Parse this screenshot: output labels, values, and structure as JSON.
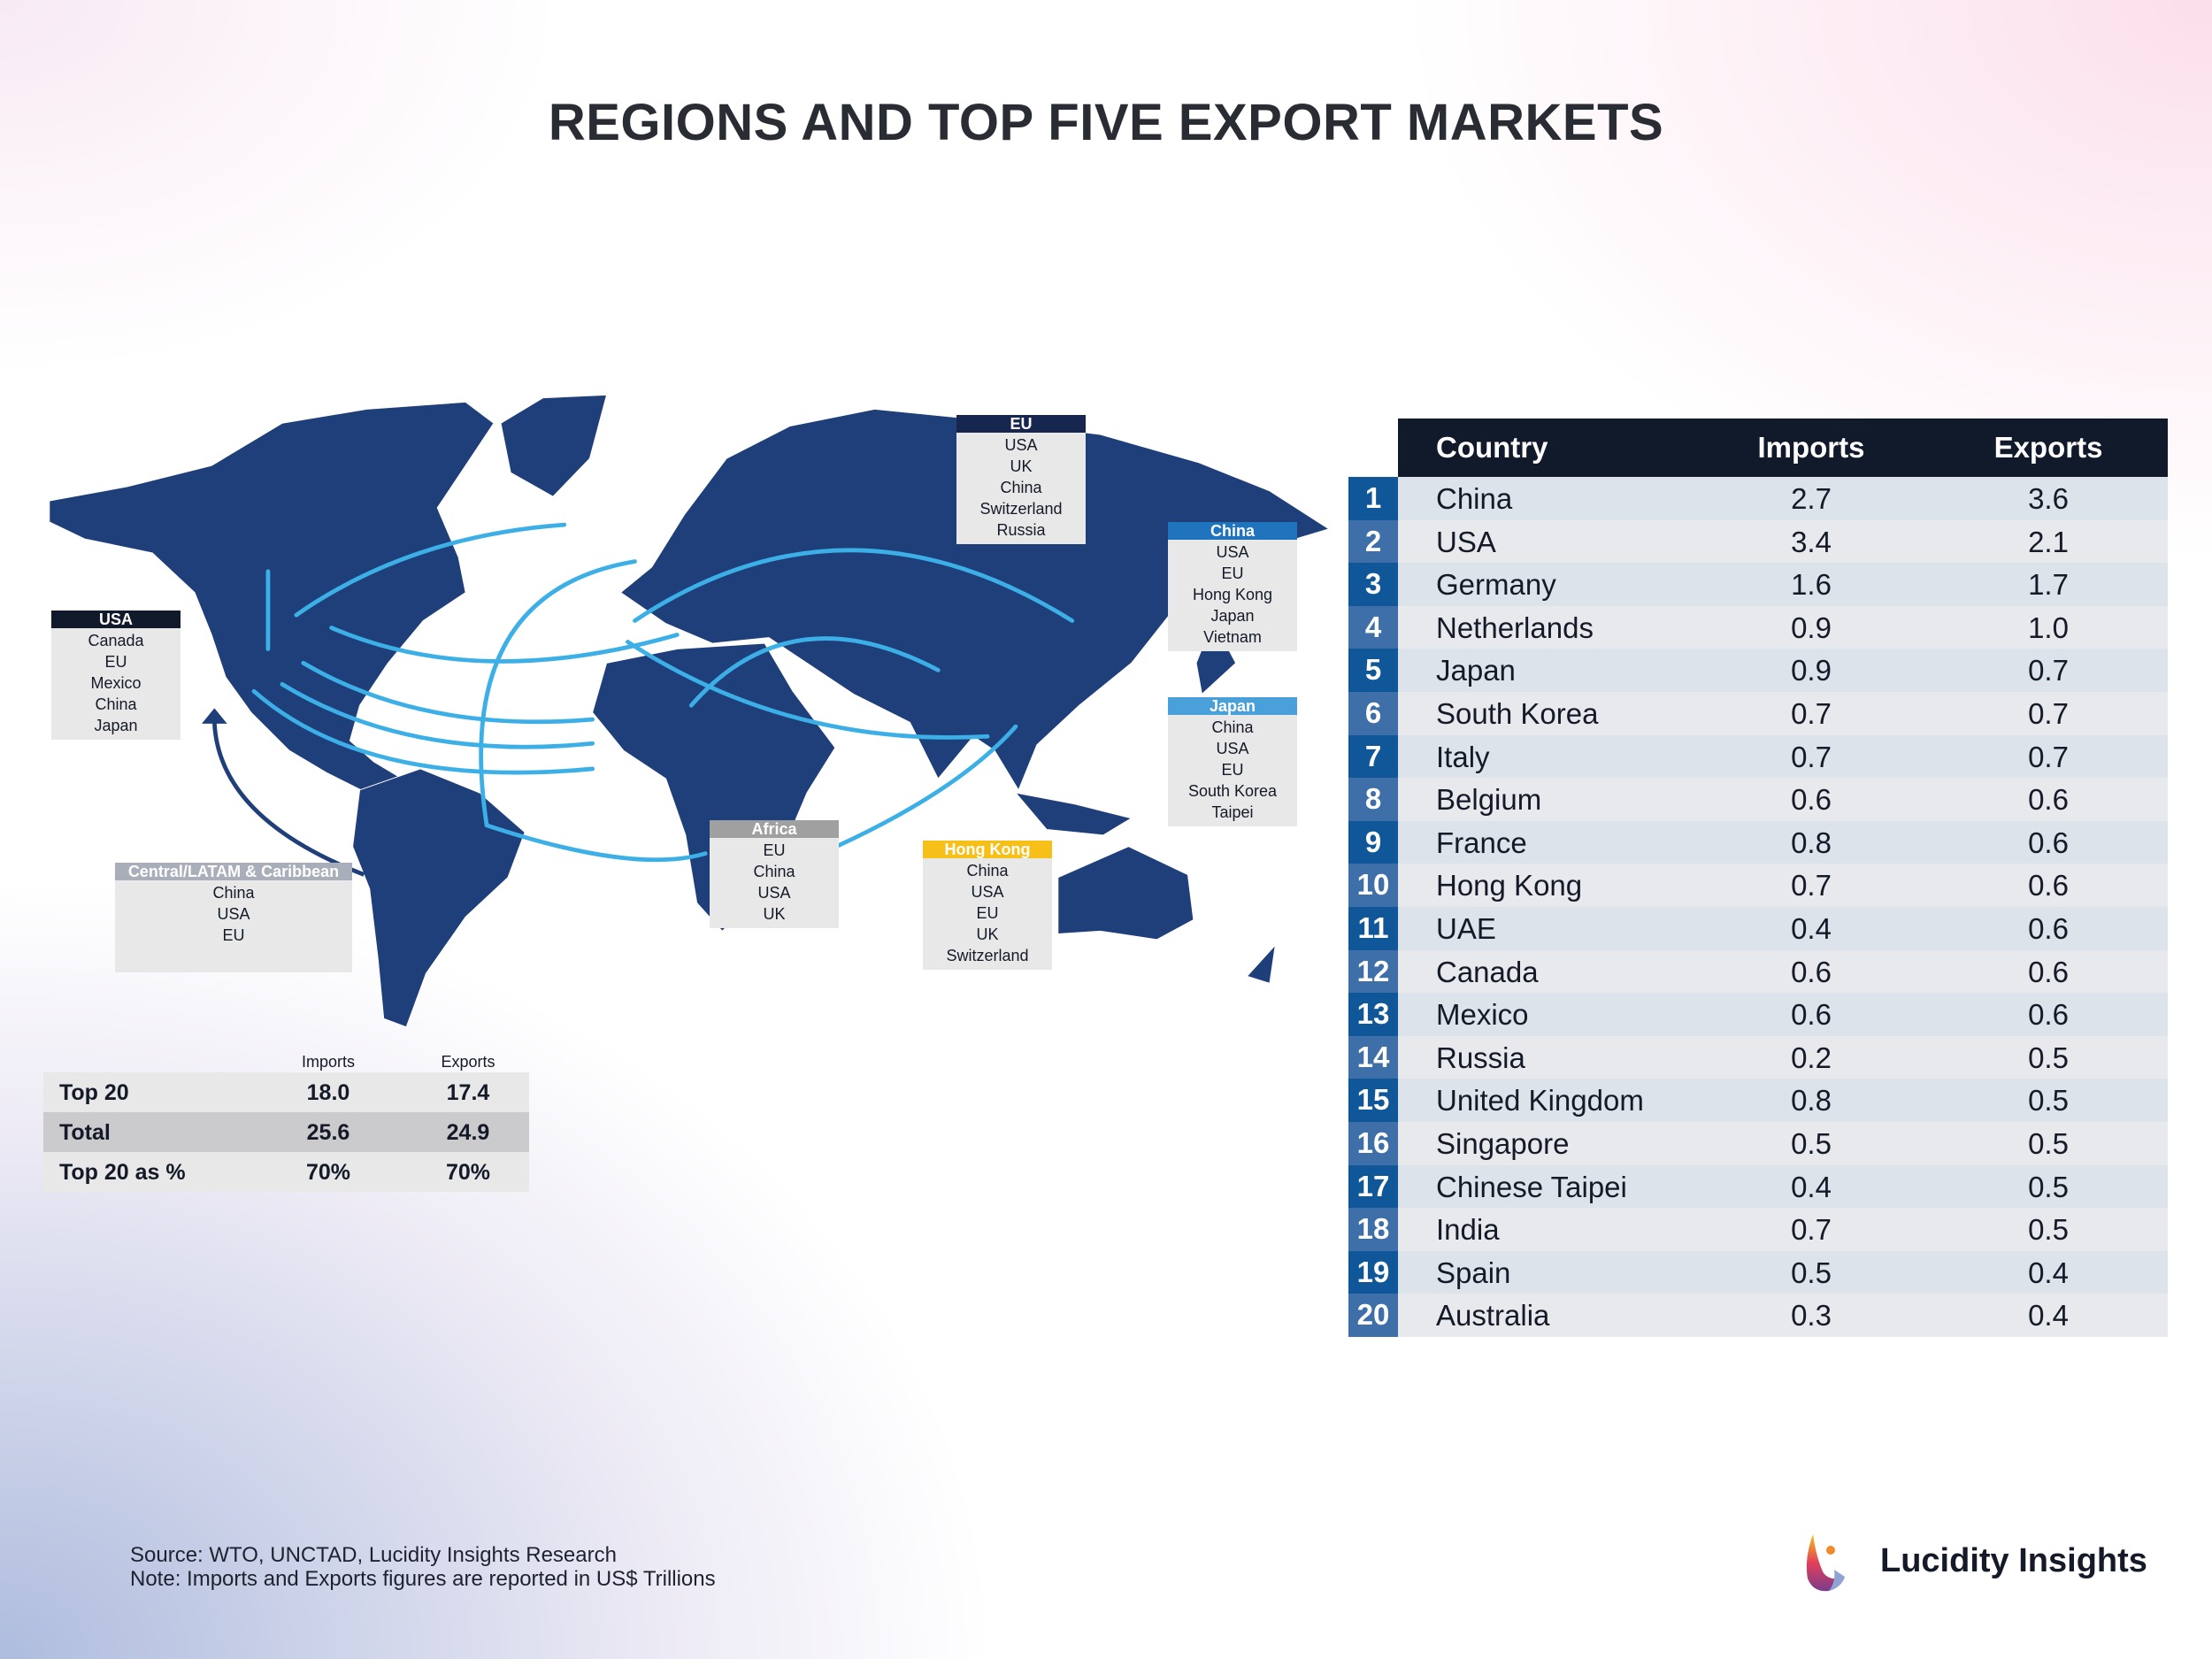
{
  "title": "REGIONS AND TOP FIVE EXPORT MARKETS",
  "colors": {
    "map": "#1f3f7a",
    "arc": "#3cb0e6",
    "navy": "#111a2b",
    "rank_dark": "#0f5798",
    "rank_light": "#3f6fa8"
  },
  "regions": [
    {
      "name": "USA",
      "header_color": "#111a2b",
      "markets": [
        "Canada",
        "EU",
        "Mexico",
        "China",
        "Japan"
      ]
    },
    {
      "name": "EU",
      "header_color": "#16264f",
      "markets": [
        "USA",
        "UK",
        "China",
        "Switzerland",
        "Russia"
      ]
    },
    {
      "name": "China",
      "header_color": "#1f74bd",
      "markets": [
        "USA",
        "EU",
        "Hong Kong",
        "Japan",
        "Vietnam"
      ]
    },
    {
      "name": "Japan",
      "header_color": "#4aa0d8",
      "markets": [
        "China",
        "USA",
        "EU",
        "South Korea",
        "Taipei"
      ]
    },
    {
      "name": "Africa",
      "header_color": "#a0a0a0",
      "markets": [
        "EU",
        "China",
        "USA",
        "UK"
      ]
    },
    {
      "name": "Hong Kong",
      "header_color": "#f6c018",
      "markets": [
        "China",
        "USA",
        "EU",
        "UK",
        "Switzerland"
      ]
    },
    {
      "name": "Central/LATAM & Caribbean",
      "header_color": "#a9afba",
      "markets": [
        "China",
        "USA",
        "EU"
      ]
    }
  ],
  "table": {
    "headers": {
      "country": "Country",
      "imports": "Imports",
      "exports": "Exports"
    },
    "rows": [
      {
        "rank": "1",
        "country": "China",
        "imports": "2.7",
        "exports": "3.6"
      },
      {
        "rank": "2",
        "country": "USA",
        "imports": "3.4",
        "exports": "2.1"
      },
      {
        "rank": "3",
        "country": "Germany",
        "imports": "1.6",
        "exports": "1.7"
      },
      {
        "rank": "4",
        "country": "Netherlands",
        "imports": "0.9",
        "exports": "1.0"
      },
      {
        "rank": "5",
        "country": "Japan",
        "imports": "0.9",
        "exports": "0.7"
      },
      {
        "rank": "6",
        "country": "South Korea",
        "imports": "0.7",
        "exports": "0.7"
      },
      {
        "rank": "7",
        "country": "Italy",
        "imports": "0.7",
        "exports": "0.7"
      },
      {
        "rank": "8",
        "country": "Belgium",
        "imports": "0.6",
        "exports": "0.6"
      },
      {
        "rank": "9",
        "country": "France",
        "imports": "0.8",
        "exports": "0.6"
      },
      {
        "rank": "10",
        "country": "Hong Kong",
        "imports": "0.7",
        "exports": "0.6"
      },
      {
        "rank": "11",
        "country": "UAE",
        "imports": "0.4",
        "exports": "0.6"
      },
      {
        "rank": "12",
        "country": "Canada",
        "imports": "0.6",
        "exports": "0.6"
      },
      {
        "rank": "13",
        "country": "Mexico",
        "imports": "0.6",
        "exports": "0.6"
      },
      {
        "rank": "14",
        "country": "Russia",
        "imports": "0.2",
        "exports": "0.5"
      },
      {
        "rank": "15",
        "country": "United Kingdom",
        "imports": "0.8",
        "exports": "0.5"
      },
      {
        "rank": "16",
        "country": "Singapore",
        "imports": "0.5",
        "exports": "0.5"
      },
      {
        "rank": "17",
        "country": "Chinese Taipei",
        "imports": "0.4",
        "exports": "0.5"
      },
      {
        "rank": "18",
        "country": "India",
        "imports": "0.7",
        "exports": "0.5"
      },
      {
        "rank": "19",
        "country": "Spain",
        "imports": "0.5",
        "exports": "0.4"
      },
      {
        "rank": "20",
        "country": "Australia",
        "imports": "0.3",
        "exports": "0.4"
      }
    ]
  },
  "summary": {
    "headers": {
      "imports": "Imports",
      "exports": "Exports"
    },
    "rows": [
      {
        "label": "Top 20",
        "imports": "18.0",
        "exports": "17.4"
      },
      {
        "label": "Total",
        "imports": "25.6",
        "exports": "24.9"
      },
      {
        "label": "Top 20 as %",
        "imports": "70%",
        "exports": "70%"
      }
    ]
  },
  "footer": {
    "source": "Source: WTO, UNCTAD, Lucidity Insights Research",
    "note": "Note: Imports and Exports figures are reported in US$ Trillions"
  },
  "brand": {
    "name": "Lucidity Insights"
  }
}
